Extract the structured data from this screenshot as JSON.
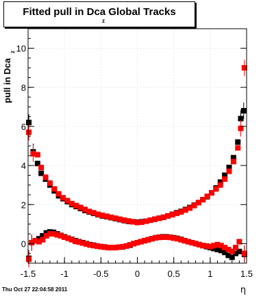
{
  "title": {
    "main": "Fitted pull in Dca",
    "sub": "z",
    "suffix": " Global Tracks"
  },
  "timestamp": "Thu Oct 27 22:04:58 2011",
  "colors": {
    "black_series": "#000000",
    "red_series": "#ff0000",
    "frame": "#000000",
    "grid": "#d9d9d9"
  },
  "chart_data": {
    "type": "scatter",
    "xlabel": "η",
    "ylabel": "pull in Dca",
    "ylabel_sub": "z",
    "xlim": [
      -1.5,
      1.5
    ],
    "ylim": [
      -1.0,
      11.0
    ],
    "grid": true,
    "x_ticks": [
      "-1.5",
      "-1",
      "-0.5",
      "0",
      "0.5",
      "1",
      "1.5"
    ],
    "y_ticks": [
      "0",
      "2",
      "4",
      "6",
      "8",
      "10"
    ],
    "series": [
      {
        "color": "#000000",
        "marker": "square",
        "points": [
          [
            -1.49,
            6.2
          ],
          [
            -1.43,
            4.7
          ],
          [
            -1.37,
            4.1
          ],
          [
            -1.32,
            3.6
          ],
          [
            -1.26,
            3.3
          ],
          [
            -1.2,
            3.0
          ],
          [
            -1.14,
            2.7
          ],
          [
            -1.08,
            2.45
          ],
          [
            -1.02,
            2.3
          ],
          [
            -0.96,
            2.15
          ],
          [
            -0.9,
            2.0
          ],
          [
            -0.84,
            1.9
          ],
          [
            -0.78,
            1.8
          ],
          [
            -0.72,
            1.7
          ],
          [
            -0.66,
            1.62
          ],
          [
            -0.6,
            1.55
          ],
          [
            -0.54,
            1.48
          ],
          [
            -0.48,
            1.42
          ],
          [
            -0.42,
            1.38
          ],
          [
            -0.36,
            1.33
          ],
          [
            -0.3,
            1.28
          ],
          [
            -0.24,
            1.23
          ],
          [
            -0.18,
            1.18
          ],
          [
            -0.12,
            1.14
          ],
          [
            -0.06,
            1.12
          ],
          [
            0.0,
            1.1
          ],
          [
            0.06,
            1.12
          ],
          [
            0.12,
            1.15
          ],
          [
            0.18,
            1.2
          ],
          [
            0.24,
            1.25
          ],
          [
            0.3,
            1.3
          ],
          [
            0.36,
            1.35
          ],
          [
            0.42,
            1.42
          ],
          [
            0.48,
            1.5
          ],
          [
            0.54,
            1.58
          ],
          [
            0.6,
            1.65
          ],
          [
            0.66,
            1.75
          ],
          [
            0.72,
            1.85
          ],
          [
            0.78,
            1.97
          ],
          [
            0.84,
            2.1
          ],
          [
            0.9,
            2.25
          ],
          [
            0.96,
            2.4
          ],
          [
            1.02,
            2.6
          ],
          [
            1.08,
            2.85
          ],
          [
            1.14,
            3.15
          ],
          [
            1.2,
            3.5
          ],
          [
            1.26,
            3.9
          ],
          [
            1.32,
            4.4
          ],
          [
            1.38,
            5.2
          ],
          [
            1.42,
            6.4
          ],
          [
            1.46,
            6.8
          ],
          [
            -1.49,
            -0.75
          ],
          [
            -1.45,
            0.05
          ],
          [
            -1.4,
            0.15
          ],
          [
            -1.35,
            0.25
          ],
          [
            -1.3,
            0.4
          ],
          [
            -1.25,
            0.55
          ],
          [
            -1.2,
            0.6
          ],
          [
            -1.15,
            0.58
          ],
          [
            -1.1,
            0.5
          ],
          [
            -1.05,
            0.42
          ],
          [
            -1.0,
            0.35
          ],
          [
            -0.95,
            0.28
          ],
          [
            -0.9,
            0.22
          ],
          [
            -0.85,
            0.15
          ],
          [
            -0.8,
            0.1
          ],
          [
            -0.75,
            0.05
          ],
          [
            -0.7,
            0.0
          ],
          [
            -0.65,
            -0.05
          ],
          [
            -0.6,
            -0.08
          ],
          [
            -0.55,
            -0.12
          ],
          [
            -0.5,
            -0.15
          ],
          [
            -0.45,
            -0.17
          ],
          [
            -0.4,
            -0.2
          ],
          [
            -0.35,
            -0.2
          ],
          [
            -0.3,
            -0.2
          ],
          [
            -0.25,
            -0.18
          ],
          [
            -0.2,
            -0.17
          ],
          [
            -0.15,
            -0.12
          ],
          [
            -0.1,
            -0.08
          ],
          [
            -0.05,
            0.0
          ],
          [
            0.0,
            0.05
          ],
          [
            0.05,
            0.1
          ],
          [
            0.1,
            0.15
          ],
          [
            0.15,
            0.2
          ],
          [
            0.2,
            0.25
          ],
          [
            0.25,
            0.3
          ],
          [
            0.3,
            0.33
          ],
          [
            0.35,
            0.35
          ],
          [
            0.4,
            0.35
          ],
          [
            0.45,
            0.33
          ],
          [
            0.5,
            0.3
          ],
          [
            0.55,
            0.27
          ],
          [
            0.6,
            0.22
          ],
          [
            0.65,
            0.15
          ],
          [
            0.7,
            0.1
          ],
          [
            0.75,
            0.05
          ],
          [
            0.8,
            0.0
          ],
          [
            0.85,
            -0.05
          ],
          [
            0.9,
            -0.1
          ],
          [
            0.95,
            -0.15
          ],
          [
            1.0,
            -0.2
          ],
          [
            1.05,
            -0.25
          ],
          [
            1.1,
            -0.3
          ],
          [
            1.15,
            -0.35
          ],
          [
            1.2,
            -0.45
          ],
          [
            1.25,
            -0.6
          ],
          [
            1.3,
            -0.7
          ],
          [
            1.35,
            -0.5
          ],
          [
            1.4,
            -0.4
          ],
          [
            1.47,
            -0.55
          ]
        ]
      },
      {
        "color": "#ff0000",
        "marker": "square",
        "points": [
          [
            -1.49,
            5.7
          ],
          [
            -1.43,
            4.6
          ],
          [
            -1.37,
            4.55
          ],
          [
            -1.32,
            3.9
          ],
          [
            -1.26,
            3.4
          ],
          [
            -1.2,
            3.1
          ],
          [
            -1.14,
            2.8
          ],
          [
            -1.08,
            2.55
          ],
          [
            -1.02,
            2.35
          ],
          [
            -0.96,
            2.2
          ],
          [
            -0.9,
            2.05
          ],
          [
            -0.84,
            1.95
          ],
          [
            -0.78,
            1.85
          ],
          [
            -0.72,
            1.75
          ],
          [
            -0.66,
            1.65
          ],
          [
            -0.6,
            1.58
          ],
          [
            -0.54,
            1.5
          ],
          [
            -0.48,
            1.45
          ],
          [
            -0.42,
            1.4
          ],
          [
            -0.36,
            1.35
          ],
          [
            -0.3,
            1.3
          ],
          [
            -0.24,
            1.25
          ],
          [
            -0.18,
            1.2
          ],
          [
            -0.12,
            1.16
          ],
          [
            -0.06,
            1.12
          ],
          [
            0.0,
            1.08
          ],
          [
            0.06,
            1.1
          ],
          [
            0.12,
            1.15
          ],
          [
            0.18,
            1.2
          ],
          [
            0.24,
            1.25
          ],
          [
            0.3,
            1.3
          ],
          [
            0.36,
            1.35
          ],
          [
            0.42,
            1.42
          ],
          [
            0.48,
            1.48
          ],
          [
            0.54,
            1.55
          ],
          [
            0.6,
            1.62
          ],
          [
            0.66,
            1.72
          ],
          [
            0.72,
            1.82
          ],
          [
            0.78,
            1.95
          ],
          [
            0.84,
            2.1
          ],
          [
            0.9,
            2.25
          ],
          [
            0.96,
            2.42
          ],
          [
            1.02,
            2.6
          ],
          [
            1.08,
            2.8
          ],
          [
            1.14,
            3.0
          ],
          [
            1.2,
            3.3
          ],
          [
            1.26,
            3.7
          ],
          [
            1.32,
            4.2
          ],
          [
            1.38,
            4.9
          ],
          [
            1.42,
            5.9
          ],
          [
            1.47,
            9.0
          ],
          [
            -1.49,
            -0.8
          ],
          [
            -1.45,
            0.05
          ],
          [
            -1.4,
            0.15
          ],
          [
            -1.35,
            0.1
          ],
          [
            -1.3,
            0.2
          ],
          [
            -1.25,
            0.4
          ],
          [
            -1.2,
            0.5
          ],
          [
            -1.15,
            0.5
          ],
          [
            -1.1,
            0.45
          ],
          [
            -1.05,
            0.4
          ],
          [
            -1.0,
            0.33
          ],
          [
            -0.95,
            0.27
          ],
          [
            -0.9,
            0.2
          ],
          [
            -0.85,
            0.12
          ],
          [
            -0.8,
            0.08
          ],
          [
            -0.75,
            0.03
          ],
          [
            -0.7,
            -0.02
          ],
          [
            -0.65,
            -0.07
          ],
          [
            -0.6,
            -0.1
          ],
          [
            -0.55,
            -0.13
          ],
          [
            -0.5,
            -0.16
          ],
          [
            -0.45,
            -0.18
          ],
          [
            -0.4,
            -0.2
          ],
          [
            -0.35,
            -0.2
          ],
          [
            -0.3,
            -0.2
          ],
          [
            -0.25,
            -0.18
          ],
          [
            -0.2,
            -0.16
          ],
          [
            -0.15,
            -0.12
          ],
          [
            -0.1,
            -0.06
          ],
          [
            -0.05,
            0.0
          ],
          [
            0.0,
            0.05
          ],
          [
            0.05,
            0.1
          ],
          [
            0.1,
            0.15
          ],
          [
            0.15,
            0.2
          ],
          [
            0.2,
            0.25
          ],
          [
            0.25,
            0.3
          ],
          [
            0.3,
            0.32
          ],
          [
            0.35,
            0.33
          ],
          [
            0.4,
            0.33
          ],
          [
            0.45,
            0.32
          ],
          [
            0.5,
            0.28
          ],
          [
            0.55,
            0.25
          ],
          [
            0.6,
            0.2
          ],
          [
            0.65,
            0.15
          ],
          [
            0.7,
            0.1
          ],
          [
            0.75,
            0.05
          ],
          [
            0.8,
            0.0
          ],
          [
            0.85,
            -0.05
          ],
          [
            0.9,
            -0.1
          ],
          [
            0.95,
            -0.12
          ],
          [
            1.0,
            -0.15
          ],
          [
            1.05,
            -0.1
          ],
          [
            1.1,
            -0.05
          ],
          [
            1.15,
            -0.1
          ],
          [
            1.2,
            -0.2
          ],
          [
            1.25,
            -0.3
          ],
          [
            1.3,
            -0.4
          ],
          [
            1.35,
            -0.2
          ],
          [
            1.4,
            0.1
          ],
          [
            1.47,
            -0.5
          ]
        ]
      }
    ]
  }
}
